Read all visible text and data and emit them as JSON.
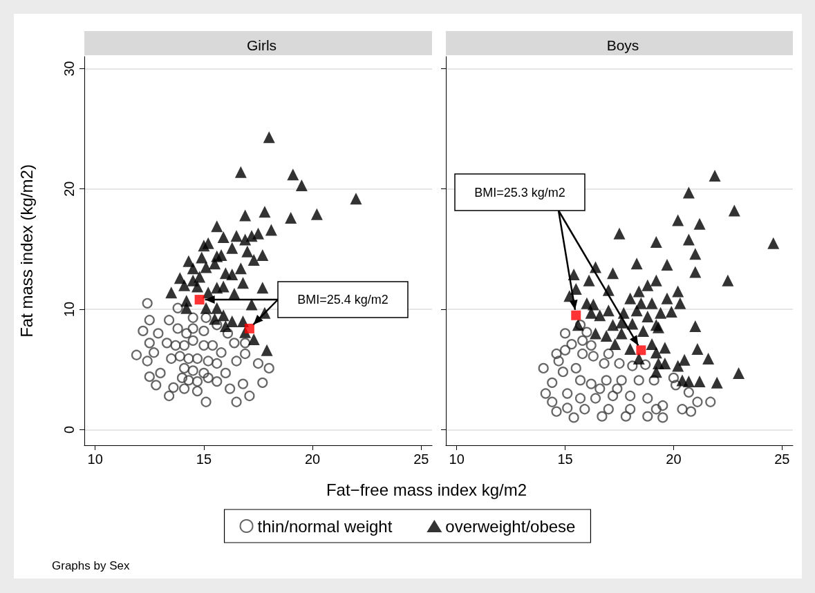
{
  "chart_data": [
    {
      "type": "scatter",
      "title": "Girls",
      "xlabel": "Fat−free mass index kg/m2",
      "ylabel": "Fat mass index (kg/m2)",
      "xlim": [
        9.5,
        25.5
      ],
      "ylim": [
        -1.3,
        31
      ],
      "xticks": [
        10,
        15,
        20,
        25
      ],
      "yticks": [
        0,
        10,
        20,
        30
      ],
      "grid": "y",
      "legend": "bottom",
      "annotations": [
        "BMI=25.4 kg/m2",
        "Graphs by Sex"
      ],
      "series": [
        {
          "name": "thin/normal weight",
          "color": "#404040",
          "marker": "circle",
          "x": [
            12.4,
            11.9,
            12.2,
            12.5,
            12.5,
            12.4,
            12.5,
            12.8,
            13.4,
            15.1,
            16.5,
            17.1,
            17.7,
            18.0,
            17.5,
            16.9,
            16.9,
            16.8,
            16.2,
            14.7,
            14.1,
            13.6,
            13.0,
            12.7,
            12.9,
            13.4,
            13.8,
            14.5,
            15.1,
            15.6,
            16.1,
            16.4,
            16.5,
            16.0,
            15.6,
            14.0,
            13.5,
            13.3,
            13.8,
            14.1,
            14.5,
            15.0,
            15.4,
            15.8,
            13.9,
            14.3,
            14.7,
            15.2,
            15.6,
            14.1,
            14.5,
            15.0,
            14.3,
            14.7,
            15.2,
            14.5,
            15.0,
            14.2,
            13.7
          ],
          "values": [
            10.5,
            6.2,
            8.2,
            9.1,
            7.2,
            5.7,
            4.4,
            3.7,
            2.8,
            2.3,
            2.3,
            2.8,
            3.9,
            5.1,
            5.5,
            6.3,
            7.2,
            3.8,
            3.4,
            3.2,
            3.4,
            3.5,
            4.7,
            6.4,
            8.0,
            9.1,
            10.1,
            9.3,
            9.3,
            8.7,
            8.0,
            7.2,
            5.7,
            4.7,
            4.0,
            4.3,
            5.9,
            7.2,
            8.4,
            7.0,
            7.4,
            7.0,
            7.0,
            6.4,
            6.1,
            5.9,
            5.9,
            5.7,
            5.5,
            5.1,
            4.9,
            4.7,
            4.1,
            4.0,
            4.3,
            8.4,
            8.2,
            8.0,
            7.0
          ]
        },
        {
          "name": "overweight/obese",
          "color": "#000000",
          "marker": "triangle",
          "x": [
            18.0,
            16.7,
            19.1,
            19.5,
            22.0,
            17.8,
            16.9,
            19.0,
            20.2,
            15.6,
            18.1,
            17.5,
            17.2,
            16.9,
            16.5,
            15.9,
            15.2,
            15.0,
            16.3,
            17.0,
            17.7,
            15.8,
            15.6,
            14.9,
            17.3,
            14.3,
            15.5,
            16.7,
            14.5,
            15.1,
            16.0,
            16.3,
            13.9,
            14.8,
            14.5,
            16.8,
            14.1,
            15.9,
            15.6,
            14.7,
            17.7,
            13.5,
            16.4,
            15.2,
            17.2,
            14.2,
            14.2,
            15.1,
            15.6,
            17.8,
            15.9,
            16.3,
            16.8,
            15.5,
            16.0,
            16.9,
            17.3,
            17.9
          ],
          "values": [
            24.3,
            21.4,
            21.2,
            20.3,
            19.2,
            18.1,
            17.8,
            17.6,
            17.9,
            16.9,
            16.6,
            16.3,
            16.1,
            15.8,
            16.1,
            16.0,
            15.5,
            15.3,
            15.1,
            14.8,
            14.5,
            14.5,
            14.4,
            14.3,
            14.1,
            14.0,
            13.8,
            13.4,
            13.4,
            13.5,
            13.0,
            12.9,
            12.6,
            12.7,
            12.4,
            12.2,
            12.0,
            11.9,
            11.8,
            11.9,
            11.8,
            11.4,
            11.3,
            11.4,
            10.4,
            10.7,
            10.1,
            10.1,
            10.1,
            9.7,
            9.5,
            9.0,
            9.0,
            9.2,
            8.6,
            8.1,
            7.5,
            6.6
          ]
        },
        {
          "color": "#ff0000",
          "marker": "square",
          "x": [
            14.8,
            17.1
          ],
          "values": [
            10.8,
            8.4
          ]
        }
      ]
    },
    {
      "type": "scatter",
      "title": "Boys",
      "xlim": [
        9.5,
        25.5
      ],
      "ylim": [
        -1.3,
        31
      ],
      "xticks": [
        10,
        15,
        20,
        25
      ],
      "yticks": [
        0,
        10,
        20,
        30
      ],
      "grid": "y",
      "tick_labels": "x",
      "annotations": [
        {
          "text": "BMI=25.3 kg/m2",
          "x": 18.5,
          "y": 6.6
        }
      ],
      "series": [
        {
          "name": "thin/normal weight",
          "color": "#404040",
          "marker": "circle",
          "x": [
            15.0,
            15.3,
            15.0,
            14.6,
            14.7,
            14.0,
            14.9,
            15.5,
            14.4,
            14.1,
            14.4,
            14.6,
            15.4,
            16.7,
            17.8,
            18.8,
            19.5,
            15.8,
            16.2,
            15.8,
            16.3,
            16.8,
            17.0,
            17.5,
            18.1,
            18.7,
            19.1,
            20.0,
            20.1,
            20.7,
            21.1,
            21.7,
            20.8,
            20.4,
            19.5,
            15.7,
            16.2,
            16.9,
            17.6,
            18.4,
            15.1,
            15.7,
            16.4,
            17.2,
            18.0,
            18.8,
            15.1,
            15.9,
            17.0,
            18.0,
            19.2,
            17.4,
            16.6,
            16.0,
            15.7
          ],
          "values": [
            8.0,
            7.1,
            6.6,
            6.3,
            5.7,
            5.1,
            4.8,
            5.1,
            3.9,
            3.0,
            2.3,
            1.5,
            1.0,
            1.1,
            1.1,
            1.1,
            1.0,
            7.4,
            7.0,
            6.3,
            6.1,
            5.5,
            6.3,
            5.5,
            5.3,
            5.4,
            4.1,
            4.3,
            3.7,
            3.1,
            2.3,
            2.3,
            1.5,
            1.7,
            2.0,
            4.1,
            3.8,
            4.1,
            4.1,
            4.1,
            3.0,
            2.6,
            2.6,
            2.8,
            2.8,
            2.6,
            1.8,
            1.7,
            1.7,
            1.7,
            1.7,
            3.4,
            3.4,
            8.1,
            8.7
          ]
        },
        {
          "name": "overweight/obese",
          "color": "#000000",
          "marker": "triangle",
          "x": [
            21.9,
            20.7,
            22.8,
            20.2,
            21.2,
            17.5,
            19.2,
            20.7,
            24.6,
            21.0,
            18.3,
            19.7,
            16.4,
            21.0,
            15.4,
            17.2,
            16.1,
            22.5,
            19.2,
            18.8,
            15.5,
            17.0,
            18.4,
            20.2,
            15.2,
            18.0,
            18.5,
            19.0,
            19.7,
            20.3,
            16.0,
            16.3,
            17.0,
            16.2,
            17.7,
            18.3,
            19.4,
            19.9,
            18.8,
            16.6,
            15.6,
            17.2,
            17.6,
            18.1,
            19.2,
            21.0,
            16.4,
            16.9,
            17.6,
            18.6,
            19.3,
            17.3,
            18.0,
            19.0,
            19.6,
            21.1,
            18.4,
            19.2,
            20.5,
            21.6,
            19.3,
            20.2,
            19.6,
            19.2,
            23.0,
            20.4,
            20.7,
            21.2,
            22.0
          ],
          "values": [
            21.1,
            19.7,
            18.2,
            17.4,
            17.1,
            16.3,
            15.6,
            15.8,
            15.5,
            14.6,
            13.8,
            13.7,
            13.5,
            13.1,
            12.9,
            13.0,
            12.4,
            12.4,
            12.4,
            12.0,
            11.7,
            11.6,
            11.5,
            11.5,
            11.1,
            10.9,
            10.5,
            10.5,
            10.9,
            10.5,
            10.5,
            10.4,
            9.9,
            9.7,
            9.7,
            9.9,
            9.7,
            9.8,
            9.4,
            9.5,
            8.7,
            8.7,
            8.9,
            8.8,
            8.7,
            8.6,
            8.0,
            7.8,
            8.0,
            8.2,
            8.5,
            7.1,
            6.7,
            7.1,
            6.8,
            6.7,
            5.9,
            6.4,
            5.8,
            5.9,
            5.5,
            5.3,
            5.5,
            4.8,
            4.7,
            4.1,
            4.0,
            4.0,
            3.9
          ]
        },
        {
          "color": "#ff0000",
          "marker": "square",
          "x": [
            15.5,
            18.5
          ],
          "values": [
            9.5,
            6.6
          ]
        }
      ]
    }
  ]
}
